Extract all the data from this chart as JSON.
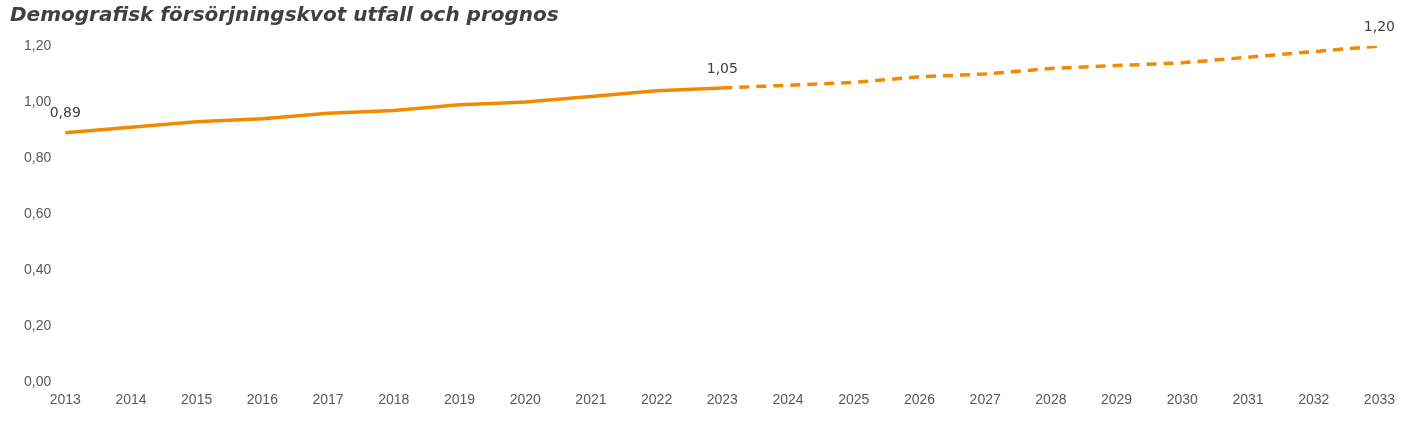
{
  "chart_data": {
    "type": "line",
    "title": "Demografisk försörjningskvot utfall och prognos",
    "categories": [
      "2013",
      "2014",
      "2015",
      "2016",
      "2017",
      "2018",
      "2019",
      "2020",
      "2021",
      "2022",
      "2023",
      "2024",
      "2025",
      "2026",
      "2027",
      "2028",
      "2029",
      "2030",
      "2031",
      "2032",
      "2033"
    ],
    "series": [
      {
        "color": "#f08a00",
        "line_style": "solid",
        "values": [
          0.89,
          0.91,
          0.93,
          0.94,
          0.96,
          0.97,
          0.99,
          1.0,
          1.02,
          1.04,
          1.05,
          null,
          null,
          null,
          null,
          null,
          null,
          null,
          null,
          null,
          null
        ],
        "value_labels": [
          "0,89",
          null,
          null,
          null,
          null,
          null,
          null,
          null,
          null,
          null,
          "1,05",
          null,
          null,
          null,
          null,
          null,
          null,
          null,
          null,
          null,
          null
        ]
      },
      {
        "color": "#f08a00",
        "line_style": "dashed",
        "values": [
          null,
          null,
          null,
          null,
          null,
          null,
          null,
          null,
          null,
          null,
          1.05,
          1.06,
          1.07,
          1.09,
          1.1,
          1.12,
          1.13,
          1.14,
          1.16,
          1.18,
          1.2
        ],
        "value_labels": [
          null,
          null,
          null,
          null,
          null,
          null,
          null,
          null,
          null,
          null,
          null,
          null,
          null,
          null,
          null,
          null,
          null,
          null,
          null,
          null,
          "1,20"
        ]
      }
    ],
    "ylim": [
      0,
      1.2
    ],
    "yticks": [
      {
        "value": 0,
        "label": "0,00"
      },
      {
        "value": 0.2,
        "label": "0,20"
      },
      {
        "value": 0.4,
        "label": "0,40"
      },
      {
        "value": 0.6,
        "label": "0,60"
      },
      {
        "value": 0.8,
        "label": "0,80"
      },
      {
        "value": 1.0,
        "label": "1,00"
      },
      {
        "value": 1.2,
        "label": "1,20"
      }
    ],
    "marker": "none",
    "legend": false
  }
}
